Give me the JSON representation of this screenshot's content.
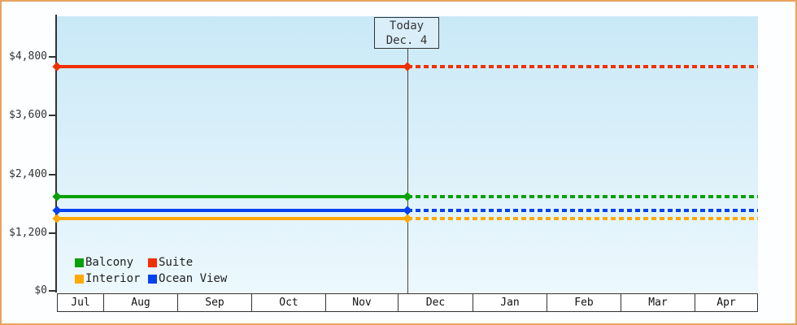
{
  "window": {
    "border_color": "#e9a45f",
    "background_color": "#fdfeff"
  },
  "chart_data": {
    "type": "line",
    "title": "",
    "xlabel": "",
    "ylabel": "",
    "x_categories": [
      "Jul",
      "Aug",
      "Sep",
      "Oct",
      "Nov",
      "Dec",
      "Jan",
      "Feb",
      "Mar",
      "Apr"
    ],
    "y_ticks": [
      "$0",
      "$1,200",
      "$2,400",
      "$3,600",
      "$4,800"
    ],
    "ylim": [
      0,
      4800
    ],
    "y_tick_interval": 1200,
    "grid": false,
    "plot_background": "light blue vertical gradient",
    "legend_position": "bottom-left inside plot",
    "today": {
      "line1": "Today",
      "line2": "Dec. 4",
      "x_category": "Dec",
      "style": "vertical line with annotation box; series solid before today, dashed after"
    },
    "values_note": "each series is a flat constant price line across all months; values estimated from axis",
    "series": [
      {
        "name": "Balcony",
        "color": "#0aa00a",
        "value": 1950
      },
      {
        "name": "Suite",
        "color": "#f13000",
        "value": 4600
      },
      {
        "name": "Interior",
        "color": "#ffa800",
        "value": 1500
      },
      {
        "name": "Ocean View",
        "color": "#0442f0",
        "value": 1660
      }
    ]
  }
}
